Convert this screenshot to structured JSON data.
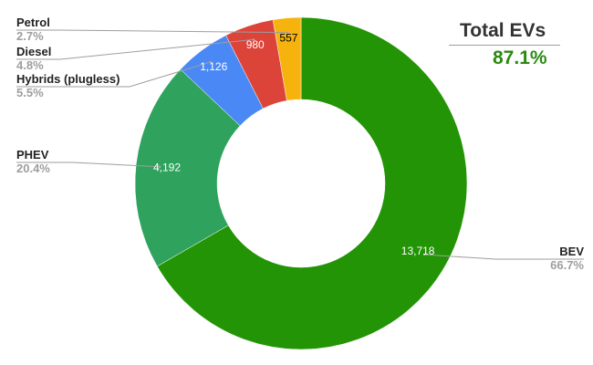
{
  "kpi": {
    "title": "Total EVs",
    "value": "87.1%"
  },
  "chart_data": {
    "type": "pie",
    "donut": true,
    "start_angle_deg": 0,
    "direction": "clockwise",
    "slices": [
      {
        "name": "BEV",
        "value": 13718,
        "value_label": "13,718",
        "percent": "66.7%",
        "color": "#229405",
        "value_text_color": "#ffffff"
      },
      {
        "name": "PHEV",
        "value": 4192,
        "value_label": "4,192",
        "percent": "20.4%",
        "color": "#2fa35d",
        "value_text_color": "#ffffff"
      },
      {
        "name": "Hybrids (plugless)",
        "value": 1126,
        "value_label": "1,126",
        "percent": "5.5%",
        "color": "#4a88f5",
        "value_text_color": "#ffffff"
      },
      {
        "name": "Diesel",
        "value": 980,
        "value_label": "980",
        "percent": "4.8%",
        "color": "#dc4339",
        "value_text_color": "#ffffff"
      },
      {
        "name": "Petrol",
        "value": 557,
        "value_label": "557",
        "percent": "2.7%",
        "color": "#f6b30d",
        "value_text_color": "#000000"
      }
    ]
  }
}
